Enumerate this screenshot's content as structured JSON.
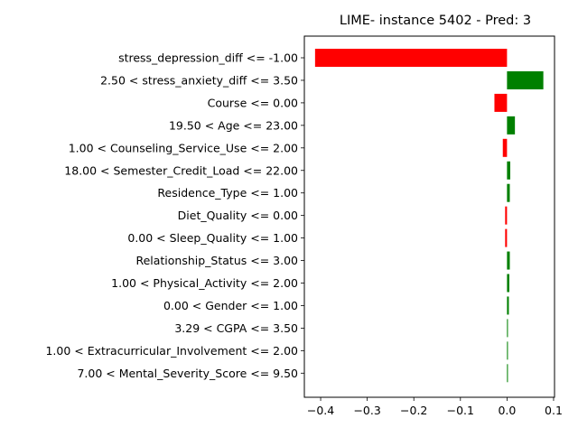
{
  "chart_data": {
    "type": "bar",
    "orientation": "horizontal",
    "title": "LIME- instance 5402 - Pred: 3",
    "xlabel": "",
    "ylabel": "",
    "xlim": [
      -0.435,
      0.102
    ],
    "xticks": [
      -0.4,
      -0.3,
      -0.2,
      -0.1,
      0.0,
      0.1
    ],
    "xtick_labels": [
      "−0.4",
      "−0.3",
      "−0.2",
      "−0.1",
      "0.0",
      "0.1"
    ],
    "grid": false,
    "positive_color": "#008000",
    "negative_color": "#ff0000",
    "categories": [
      "stress_depression_diff <= -1.00",
      "2.50 < stress_anxiety_diff <= 3.50",
      "Course <= 0.00",
      "19.50 < Age <= 23.00",
      "1.00 < Counseling_Service_Use <= 2.00",
      "18.00 < Semester_Credit_Load <= 22.00",
      "Residence_Type <= 1.00",
      "Diet_Quality <= 0.00",
      "0.00 < Sleep_Quality <= 1.00",
      "Relationship_Status <= 3.00",
      "1.00 < Physical_Activity <= 2.00",
      "0.00 < Gender <= 1.00",
      "3.29 < CGPA <= 3.50",
      "1.00 < Extracurricular_Involvement <= 2.00",
      "7.00 < Mental_Severity_Score <= 9.50"
    ],
    "values": [
      -0.412,
      0.078,
      -0.027,
      0.017,
      -0.009,
      0.007,
      0.006,
      -0.004,
      -0.004,
      0.006,
      0.005,
      0.004,
      0.002,
      0.002,
      0.002
    ]
  }
}
